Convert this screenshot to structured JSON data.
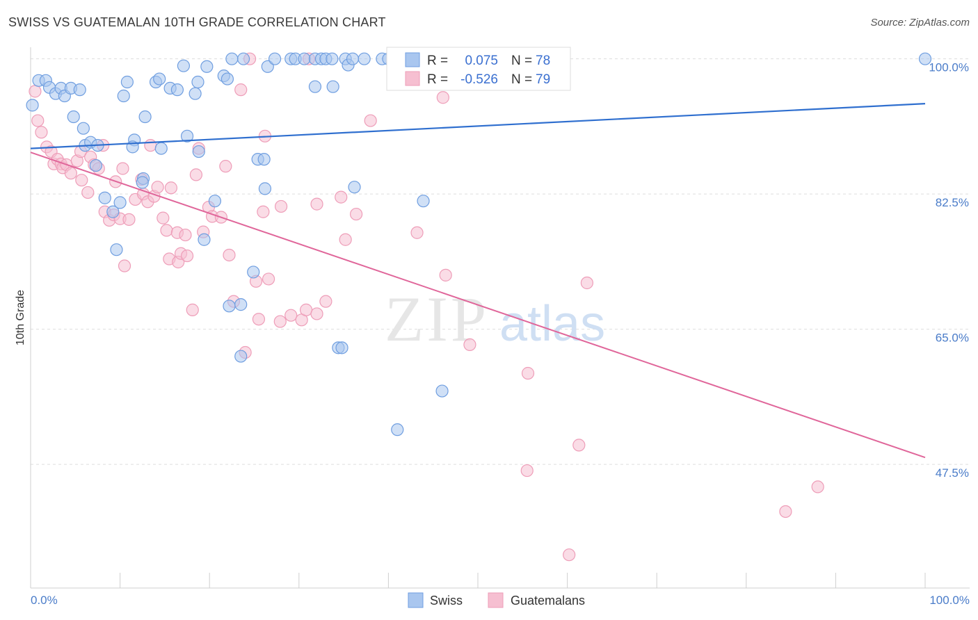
{
  "header": {
    "title": "SWISS VS GUATEMALAN 10TH GRADE CORRELATION CHART",
    "source": "Source: ZipAtlas.com"
  },
  "watermark": {
    "zip": "ZIP",
    "atlas": "atlas"
  },
  "legend": {
    "r_label": "R =",
    "n_label": "N =",
    "swiss": {
      "r": "0.075",
      "n": "78"
    },
    "guatemalans": {
      "r": "-0.526",
      "n": "79"
    }
  },
  "bottom_legend": [
    "Swiss",
    "Guatemalans"
  ],
  "colors": {
    "swiss_fill": "#a9c6ef",
    "swiss_stroke": "#6f9ee0",
    "swiss_line": "#2f6fcf",
    "guat_fill": "#f6bfd1",
    "guat_stroke": "#ee9db8",
    "guat_line": "#e0669a",
    "tick_label": "#4a7cc9",
    "grid": "#dddddd"
  },
  "chart_data": {
    "type": "scatter",
    "title": "SWISS VS GUATEMALAN 10TH GRADE CORRELATION CHART",
    "xlabel": "",
    "ylabel": "10th Grade",
    "xlim": [
      0,
      100
    ],
    "ylim": [
      31.5,
      101.5
    ],
    "x_tick_labels": [
      "0.0%",
      "100.0%"
    ],
    "y_ticks": [
      47.5,
      65.0,
      82.5,
      100.0
    ],
    "y_tick_labels": [
      "47.5%",
      "65.0%",
      "82.5%",
      "100.0%"
    ],
    "grid": true,
    "legend_position": "top-center",
    "series": [
      {
        "name": "Swiss",
        "trend": {
          "x": [
            0,
            100
          ],
          "y": [
            88.4,
            94.2
          ]
        },
        "points": [
          [
            0.2,
            94
          ],
          [
            0.9,
            97.2
          ],
          [
            1.7,
            97.2
          ],
          [
            2.1,
            96.3
          ],
          [
            2.8,
            95.5
          ],
          [
            3.4,
            96.2
          ],
          [
            3.8,
            95.2
          ],
          [
            4.5,
            96.2
          ],
          [
            5.5,
            96
          ],
          [
            4.8,
            92.5
          ],
          [
            5.9,
            91
          ],
          [
            6.1,
            88.8
          ],
          [
            6.7,
            89.2
          ],
          [
            7.5,
            88.8
          ],
          [
            7.3,
            86.2
          ],
          [
            8.3,
            82
          ],
          [
            9.2,
            80.2
          ],
          [
            10.0,
            81.4
          ],
          [
            9.6,
            75.3
          ],
          [
            10.4,
            95.2
          ],
          [
            10.8,
            97
          ],
          [
            11.6,
            89.5
          ],
          [
            11.4,
            88.6
          ],
          [
            12.8,
            92.5
          ],
          [
            12.6,
            84.5
          ],
          [
            12.5,
            84
          ],
          [
            14.0,
            97
          ],
          [
            14.4,
            97.4
          ],
          [
            14.6,
            88.4
          ],
          [
            15.6,
            96.2
          ],
          [
            16.4,
            96
          ],
          [
            17.1,
            99.1
          ],
          [
            17.5,
            90
          ],
          [
            18.4,
            95.5
          ],
          [
            18.7,
            97
          ],
          [
            18.8,
            88
          ],
          [
            19.4,
            76.6
          ],
          [
            19.7,
            99
          ],
          [
            20.6,
            81.6
          ],
          [
            21.6,
            97.8
          ],
          [
            22.0,
            97.4
          ],
          [
            22.2,
            68
          ],
          [
            22.5,
            100
          ],
          [
            23.8,
            100
          ],
          [
            23.5,
            61.5
          ],
          [
            23.5,
            68.2
          ],
          [
            24.9,
            72.4
          ],
          [
            25.4,
            87
          ],
          [
            26.1,
            87
          ],
          [
            26.2,
            83.2
          ],
          [
            26.5,
            99
          ],
          [
            27.3,
            100
          ],
          [
            29.1,
            100
          ],
          [
            29.6,
            100
          ],
          [
            30.6,
            100
          ],
          [
            31.8,
            96.4
          ],
          [
            31.8,
            100
          ],
          [
            32.5,
            100
          ],
          [
            33.0,
            100
          ],
          [
            33.8,
            96.4
          ],
          [
            33.7,
            100
          ],
          [
            34.4,
            62.6
          ],
          [
            34.8,
            62.6
          ],
          [
            35.2,
            100
          ],
          [
            35.5,
            99.2
          ],
          [
            36.0,
            100
          ],
          [
            36.2,
            83.4
          ],
          [
            37.3,
            100
          ],
          [
            39.3,
            100
          ],
          [
            40.0,
            100
          ],
          [
            40.7,
            100
          ],
          [
            41.0,
            52
          ],
          [
            41.4,
            100
          ],
          [
            42.1,
            100
          ],
          [
            42.7,
            100
          ],
          [
            43.9,
            81.6
          ],
          [
            46.0,
            57
          ],
          [
            100.0,
            100
          ]
        ]
      },
      {
        "name": "Guatemalans",
        "trend": {
          "x": [
            0,
            100
          ],
          "y": [
            87.9,
            48.4
          ]
        },
        "points": [
          [
            0.5,
            95.8
          ],
          [
            0.8,
            92
          ],
          [
            1.2,
            90.5
          ],
          [
            1.8,
            88.6
          ],
          [
            2.3,
            88
          ],
          [
            2.6,
            86.4
          ],
          [
            3.0,
            87
          ],
          [
            3.4,
            86.4
          ],
          [
            3.6,
            85.9
          ],
          [
            4.0,
            86.3
          ],
          [
            4.5,
            85.2
          ],
          [
            5.2,
            86.8
          ],
          [
            5.6,
            88
          ],
          [
            5.7,
            84.3
          ],
          [
            6.4,
            82.7
          ],
          [
            6.7,
            87.3
          ],
          [
            7.1,
            86.3
          ],
          [
            7.6,
            85.8
          ],
          [
            8.1,
            88.8
          ],
          [
            8.3,
            80.2
          ],
          [
            8.8,
            79.1
          ],
          [
            9.3,
            79.8
          ],
          [
            9.5,
            84.1
          ],
          [
            10.0,
            79.3
          ],
          [
            10.3,
            85.8
          ],
          [
            10.5,
            73.2
          ],
          [
            11.0,
            79.2
          ],
          [
            11.7,
            81.8
          ],
          [
            12.4,
            84.4
          ],
          [
            12.6,
            82.5
          ],
          [
            13.1,
            81.5
          ],
          [
            13.4,
            88.8
          ],
          [
            13.8,
            82.2
          ],
          [
            14.2,
            83.4
          ],
          [
            14.8,
            79.4
          ],
          [
            15.2,
            77.8
          ],
          [
            15.5,
            74.1
          ],
          [
            15.7,
            83.3
          ],
          [
            16.4,
            77.5
          ],
          [
            16.5,
            73.7
          ],
          [
            16.8,
            74.8
          ],
          [
            17.3,
            77.2
          ],
          [
            17.5,
            74.5
          ],
          [
            18.1,
            67.5
          ],
          [
            18.5,
            85
          ],
          [
            18.8,
            88.4
          ],
          [
            19.3,
            77.6
          ],
          [
            19.9,
            80.8
          ],
          [
            20.3,
            79.6
          ],
          [
            21.3,
            79.5
          ],
          [
            21.8,
            86.1
          ],
          [
            22.2,
            74.6
          ],
          [
            22.7,
            68.6
          ],
          [
            23.5,
            96
          ],
          [
            24.0,
            62
          ],
          [
            24.5,
            100
          ],
          [
            25.2,
            71.2
          ],
          [
            25.5,
            66.3
          ],
          [
            26.0,
            80.2
          ],
          [
            26.2,
            90
          ],
          [
            26.6,
            71.5
          ],
          [
            27.9,
            66
          ],
          [
            28.0,
            80.9
          ],
          [
            29.1,
            66.8
          ],
          [
            30.3,
            66.2
          ],
          [
            30.8,
            67.5
          ],
          [
            31.1,
            100
          ],
          [
            32.0,
            67
          ],
          [
            33.0,
            68.6
          ],
          [
            32.0,
            81.2
          ],
          [
            34.7,
            82.1
          ],
          [
            35.2,
            76.6
          ],
          [
            36.4,
            79.9
          ],
          [
            38.0,
            92
          ],
          [
            43.2,
            77.5
          ],
          [
            46.1,
            95
          ],
          [
            46.4,
            72
          ],
          [
            49.1,
            63
          ],
          [
            55.6,
            59.3
          ]
        ],
        "outliers": [
          [
            55.5,
            46.7
          ],
          [
            60.2,
            35.8
          ],
          [
            61.3,
            50
          ],
          [
            62.2,
            71
          ],
          [
            84.4,
            41.4
          ],
          [
            88.0,
            44.6
          ]
        ]
      }
    ]
  }
}
